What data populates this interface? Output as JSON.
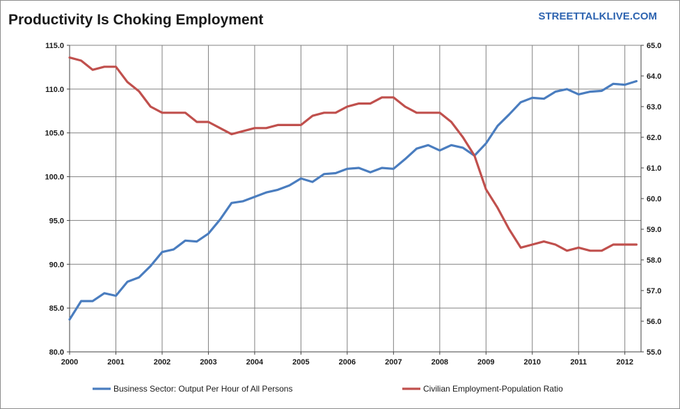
{
  "title": "Productivity Is Choking Employment",
  "brand": "STREETTALKLIVE.COM",
  "colors": {
    "series1": "#4a7dbf",
    "series2": "#c0504d",
    "grid": "#808080",
    "brand": "#2e64b0"
  },
  "chart_data": {
    "type": "line",
    "title": "Productivity Is Choking Employment",
    "xlim": [
      2000,
      2012.35
    ],
    "x_ticks": [
      "2000",
      "2001",
      "2002",
      "2003",
      "2004",
      "2005",
      "2006",
      "2007",
      "2008",
      "2009",
      "2010",
      "2011",
      "2012"
    ],
    "y_left": {
      "lim": [
        80,
        115
      ],
      "ticks": [
        "80.0",
        "85.0",
        "90.0",
        "95.0",
        "100.0",
        "105.0",
        "110.0",
        "115.0"
      ]
    },
    "y_right": {
      "lim": [
        55,
        65
      ],
      "ticks": [
        "55.0",
        "56.0",
        "57.0",
        "58.0",
        "59.0",
        "60.0",
        "61.0",
        "62.0",
        "63.0",
        "64.0",
        "65.0"
      ]
    },
    "grid": true,
    "legend_position": "bottom",
    "series": [
      {
        "name": "Business Sector: Output Per Hour of All Persons",
        "axis": "left",
        "x": [
          2000,
          2000.25,
          2000.5,
          2000.75,
          2001,
          2001.25,
          2001.5,
          2001.75,
          2002,
          2002.25,
          2002.5,
          2002.75,
          2003,
          2003.25,
          2003.5,
          2003.75,
          2004,
          2004.25,
          2004.5,
          2004.75,
          2005,
          2005.25,
          2005.5,
          2005.75,
          2006,
          2006.25,
          2006.5,
          2006.75,
          2007,
          2007.25,
          2007.5,
          2007.75,
          2008,
          2008.25,
          2008.5,
          2008.75,
          2009,
          2009.25,
          2009.5,
          2009.75,
          2010,
          2010.25,
          2010.5,
          2010.75,
          2011,
          2011.25,
          2011.5,
          2011.75,
          2012,
          2012.25
        ],
        "values": [
          83.7,
          85.8,
          85.8,
          86.7,
          86.4,
          88.0,
          88.5,
          89.8,
          91.4,
          91.7,
          92.7,
          92.6,
          93.5,
          95.1,
          97.0,
          97.2,
          97.7,
          98.2,
          98.5,
          99.0,
          99.8,
          99.4,
          100.3,
          100.4,
          100.9,
          101.0,
          100.5,
          101.0,
          100.9,
          102.0,
          103.2,
          103.6,
          103.0,
          103.6,
          103.3,
          102.4,
          103.8,
          105.8,
          107.1,
          108.5,
          109.0,
          108.9,
          109.7,
          110.0,
          109.4,
          109.7,
          109.8,
          110.6,
          110.5,
          110.9
        ]
      },
      {
        "name": "Civilian Employment-Population Ratio",
        "axis": "right",
        "x": [
          2000,
          2000.25,
          2000.5,
          2000.75,
          2001,
          2001.25,
          2001.5,
          2001.75,
          2002,
          2002.25,
          2002.5,
          2002.75,
          2003,
          2003.25,
          2003.5,
          2003.75,
          2004,
          2004.25,
          2004.5,
          2004.75,
          2005,
          2005.25,
          2005.5,
          2005.75,
          2006,
          2006.25,
          2006.5,
          2006.75,
          2007,
          2007.25,
          2007.5,
          2007.75,
          2008,
          2008.25,
          2008.5,
          2008.75,
          2009,
          2009.25,
          2009.5,
          2009.75,
          2010,
          2010.25,
          2010.5,
          2010.75,
          2011,
          2011.25,
          2011.5,
          2011.75,
          2012,
          2012.25
        ],
        "values": [
          64.6,
          64.5,
          64.2,
          64.3,
          64.3,
          63.8,
          63.5,
          63.0,
          62.8,
          62.8,
          62.8,
          62.5,
          62.5,
          62.3,
          62.1,
          62.2,
          62.3,
          62.3,
          62.4,
          62.4,
          62.4,
          62.7,
          62.8,
          62.8,
          63.0,
          63.1,
          63.1,
          63.3,
          63.3,
          63.0,
          62.8,
          62.8,
          62.8,
          62.5,
          62.0,
          61.4,
          60.3,
          59.7,
          59.0,
          58.4,
          58.5,
          58.6,
          58.5,
          58.3,
          58.4,
          58.3,
          58.3,
          58.5,
          58.5,
          58.5
        ]
      }
    ]
  }
}
